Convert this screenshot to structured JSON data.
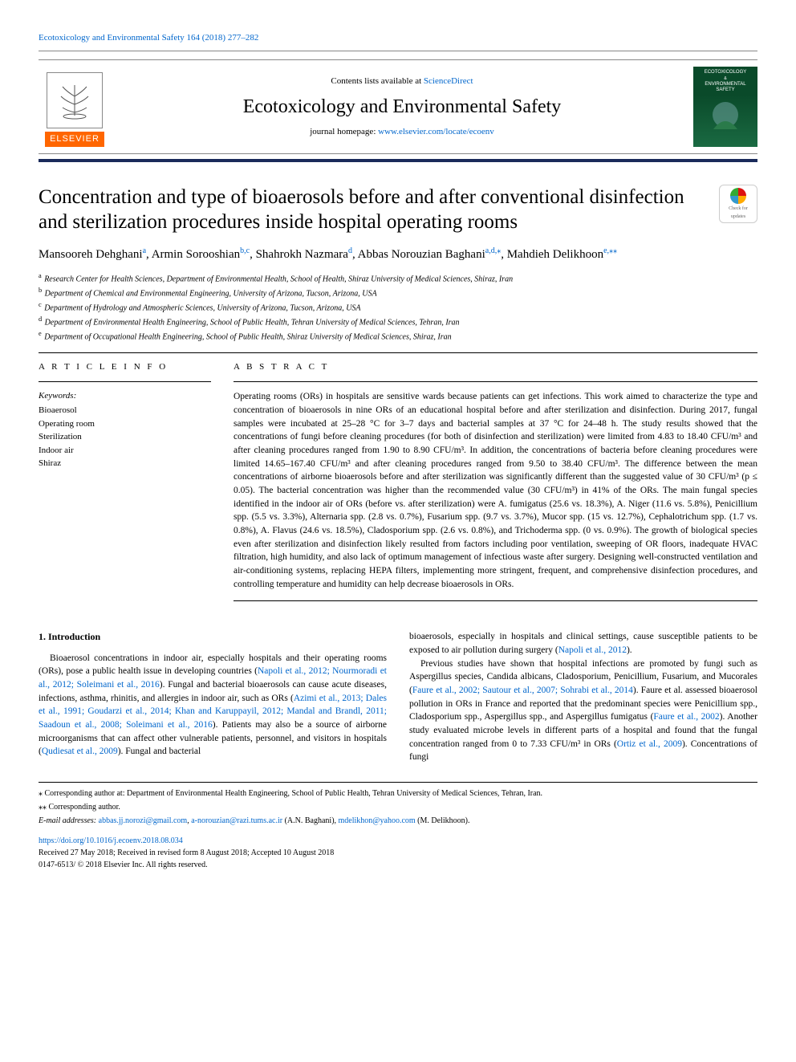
{
  "header": {
    "citation": "Ecotoxicology and Environmental Safety 164 (2018) 277–282",
    "contents_prefix": "Contents lists available at ",
    "contents_link": "ScienceDirect",
    "journal_name": "Ecotoxicology and Environmental Safety",
    "homepage_prefix": "journal homepage: ",
    "homepage_link": "www.elsevier.com/locate/ecoenv",
    "elsevier_label": "ELSEVIER",
    "cover_top": "ECOTOXICOLOGY",
    "cover_bot": "ENVIRONMENTAL SAFETY"
  },
  "colors": {
    "link": "#0066cc",
    "elsevier_orange": "#ff6600",
    "rule_dark": "#1a2a5a",
    "cover_green": "#0a4a2a"
  },
  "crossmark": {
    "line1": "Check for",
    "line2": "updates"
  },
  "title": "Concentration and type of bioaerosols before and after conventional disinfection and sterilization procedures inside hospital operating rooms",
  "authors_html": "Mansooreh Dehghani<sup>a</sup>, Armin Sorooshian<sup>b,c</sup>, Shahrokh Nazmara<sup>d</sup>, Abbas Norouzian Baghani<sup>a,d,</sup><sup>⁎</sup>, Mahdieh Delikhoon<sup>e,</sup><sup>⁎⁎</sup>",
  "affiliations": [
    {
      "sup": "a",
      "text": "Research Center for Health Sciences, Department of Environmental Health, School of Health, Shiraz University of Medical Sciences, Shiraz, Iran"
    },
    {
      "sup": "b",
      "text": "Department of Chemical and Environmental Engineering, University of Arizona, Tucson, Arizona, USA"
    },
    {
      "sup": "c",
      "text": "Department of Hydrology and Atmospheric Sciences, University of Arizona, Tucson, Arizona, USA"
    },
    {
      "sup": "d",
      "text": "Department of Environmental Health Engineering, School of Public Health, Tehran University of Medical Sciences, Tehran, Iran"
    },
    {
      "sup": "e",
      "text": "Department of Occupational Health Engineering, School of Public Health, Shiraz University of Medical Sciences, Shiraz, Iran"
    }
  ],
  "article_info": {
    "head": "A R T I C L E  I N F O",
    "keywords_label": "Keywords:",
    "keywords": [
      "Bioaerosol",
      "Operating room",
      "Sterilization",
      "Indoor air",
      "Shiraz"
    ]
  },
  "abstract": {
    "head": "A B S T R A C T",
    "text": "Operating rooms (ORs) in hospitals are sensitive wards because patients can get infections. This work aimed to characterize the type and concentration of bioaerosols in nine ORs of an educational hospital before and after sterilization and disinfection. During 2017, fungal samples were incubated at 25–28 °C for 3–7 days and bacterial samples at 37 °C for 24–48 h. The study results showed that the concentrations of fungi before cleaning procedures (for both of disinfection and sterilization) were limited from 4.83 to 18.40 CFU/m³ and after cleaning procedures ranged from 1.90 to 8.90 CFU/m³. In addition, the concentrations of bacteria before cleaning procedures were limited 14.65–167.40 CFU/m³ and after cleaning procedures ranged from 9.50 to 38.40 CFU/m³. The difference between the mean concentrations of airborne bioaerosols before and after sterilization was significantly different than the suggested value of 30 CFU/m³ (p ≤ 0.05). The bacterial concentration was higher than the recommended value (30 CFU/m³) in 41% of the ORs. The main fungal species identified in the indoor air of ORs (before vs. after sterilization) were A. fumigatus (25.6 vs. 18.3%), A. Niger (11.6 vs. 5.8%), Penicillium spp. (5.5 vs. 3.3%), Alternaria spp. (2.8 vs. 0.7%), Fusarium spp. (9.7 vs. 3.7%), Mucor spp. (15 vs. 12.7%), Cephalotrichum spp. (1.7 vs. 0.8%), A. Flavus (24.6 vs. 18.5%), Cladosporium spp. (2.6 vs. 0.8%), and Trichoderma spp. (0 vs. 0.9%). The growth of biological species even after sterilization and disinfection likely resulted from factors including poor ventilation, sweeping of OR floors, inadequate HVAC filtration, high humidity, and also lack of optimum management of infectious waste after surgery. Designing well-constructed ventilation and air-conditioning systems, replacing HEPA filters, implementing more stringent, frequent, and comprehensive disinfection procedures, and controlling temperature and humidity can help decrease bioaerosols in ORs."
  },
  "body": {
    "heading1": "1. Introduction",
    "left_p1_pre": "Bioaerosol concentrations in indoor air, especially hospitals and their operating rooms (ORs), pose a public health issue in developing countries (",
    "left_c1": "Napoli et al., 2012; Nourmoradi et al., 2012; Soleimani et al., 2016",
    "left_p1_mid": "). Fungal and bacterial bioaerosols can cause acute diseases, infections, asthma, rhinitis, and allergies in indoor air, such as ORs (",
    "left_c2": "Azimi et al., 2013; Dales et al., 1991; Goudarzi et al., 2014; Khan and Karuppayil, 2012; Mandal and Brandl, 2011; Saadoun et al., 2008; Soleimani et al., 2016",
    "left_p1_mid2": "). Patients may also be a source of airborne microorganisms that can affect other vulnerable patients, personnel, and visitors in hospitals (",
    "left_c3": "Qudiesat et al., 2009",
    "left_p1_end": "). Fungal and bacterial",
    "right_p1_pre": "bioaerosols, especially in hospitals and clinical settings, cause susceptible patients to be exposed to air pollution during surgery (",
    "right_c1": "Napoli et al., 2012",
    "right_p1_end": ").",
    "right_p2_pre": "Previous studies have shown that hospital infections are promoted by fungi such as Aspergillus species, Candida albicans, Cladosporium, Penicillium, Fusarium, and Mucorales (",
    "right_c2": "Faure et al., 2002; Sautour et al., 2007; Sohrabi et al., 2014",
    "right_p2_mid": "). Faure et al. assessed bioaerosol pollution in ORs in France and reported that the predominant species were Penicillium spp., Cladosporium spp., Aspergillus spp., and Aspergillus fumigatus (",
    "right_c3": "Faure et al., 2002",
    "right_p2_mid2": "). Another study evaluated microbe levels in different parts of a hospital and found that the fungal concentration ranged from 0 to 7.33 CFU/m³ in ORs (",
    "right_c4": "Ortiz et al., 2009",
    "right_p2_end": "). Concentrations of fungi"
  },
  "footnotes": {
    "f1": "⁎ Corresponding author at: Department of Environmental Health Engineering, School of Public Health, Tehran University of Medical Sciences, Tehran, Iran.",
    "f2": "⁎⁎ Corresponding author.",
    "email_label": "E-mail addresses: ",
    "email1": "abbas.jj.norozi@gmail.com",
    "email_sep1": ", ",
    "email2": "a-norouzian@razi.tums.ac.ir",
    "email_aff1": " (A.N. Baghani), ",
    "email3": "mdelikhon@yahoo.com",
    "email_aff2": " (M. Delikhoon)."
  },
  "received": {
    "doi": "https://doi.org/10.1016/j.ecoenv.2018.08.034",
    "dates": "Received 27 May 2018; Received in revised form 8 August 2018; Accepted 10 August 2018",
    "issn": "0147-6513/ © 2018 Elsevier Inc. All rights reserved."
  }
}
